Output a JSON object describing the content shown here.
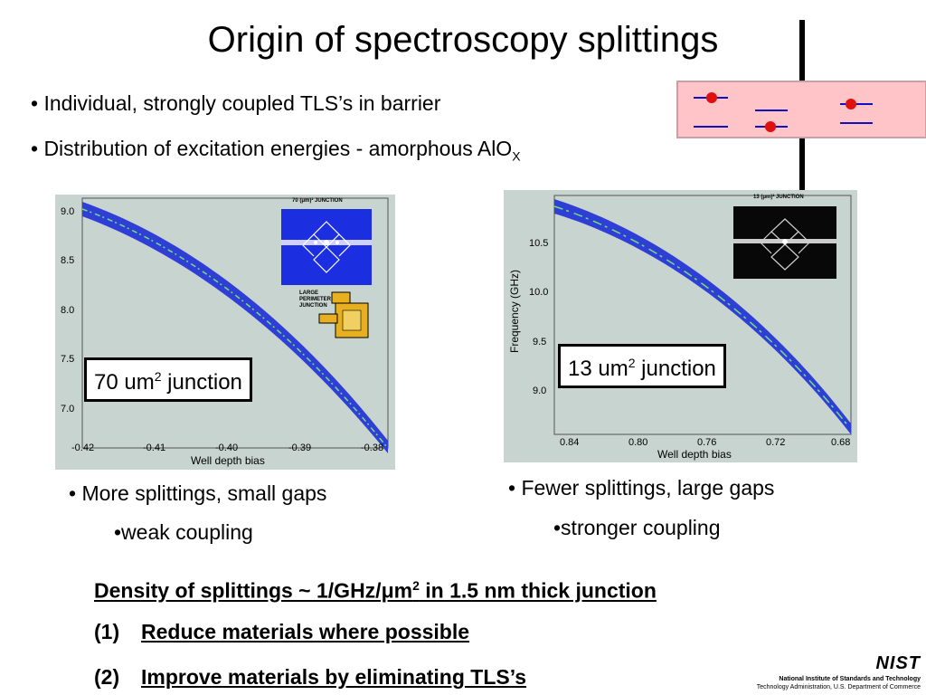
{
  "title": "Origin of spectroscopy splittings",
  "bullets": {
    "b1": "• Individual, strongly coupled TLS’s in barrier",
    "b2_main": "• Distribution of excitation energies - amorphous AlO",
    "b2_sub": "X"
  },
  "left_plot": {
    "label_main": "70 um",
    "label_sup": "2",
    "label_tail": " junction",
    "inset_title": "70 (μm)² JUNCTION",
    "inset2_label_1": "LARGE",
    "inset2_label_2": "PERIMETER",
    "inset2_label_3": "JUNCTION",
    "xlabel": "Well depth bias",
    "yticks": [
      "9.0",
      "8.5",
      "8.0",
      "7.5",
      "7.0"
    ],
    "xticks": [
      "-0.42",
      "-0.41",
      "-0.40",
      "-0.39",
      "-0.38"
    ]
  },
  "right_plot": {
    "label_main": "13 um",
    "label_sup": "2",
    "label_tail": " junction",
    "inset_title": "13 (μm)² JUNCTION",
    "xlabel": "Well depth bias",
    "ylabel": "Frequency (GHz)",
    "yticks": [
      "10.5",
      "10.0",
      "9.5",
      "9.0"
    ],
    "xticks": [
      "0.84",
      "0.80",
      "0.76",
      "0.72",
      "0.68"
    ]
  },
  "captions": {
    "left_1": "• More splittings, small gaps",
    "left_2": "•weak coupling",
    "right_1": "• Fewer splittings, large gaps",
    "right_2": "•stronger coupling"
  },
  "summary": {
    "line1_a": "Density of splittings ~ 1/GHz/μm",
    "line1_sup": "2",
    "line1_b": " in 1.5 nm thick junction",
    "item1_num": "(1)",
    "item1_text": "Reduce materials where possible",
    "item2_num": "(2)",
    "item2_text": "Improve materials by eliminating TLS’s"
  },
  "footer": {
    "logo": "NIST",
    "org": "National Institute of Standards and Technology",
    "dept": "Technology Administration, U.S. Department of Commerce"
  },
  "colors": {
    "band": "#2f3fd6",
    "band_noise": "#6fe07a",
    "plot_bg": "#c8d4d0",
    "barrier": "#ffc4c8",
    "dot": "#e01010",
    "level": "#1010c0"
  }
}
